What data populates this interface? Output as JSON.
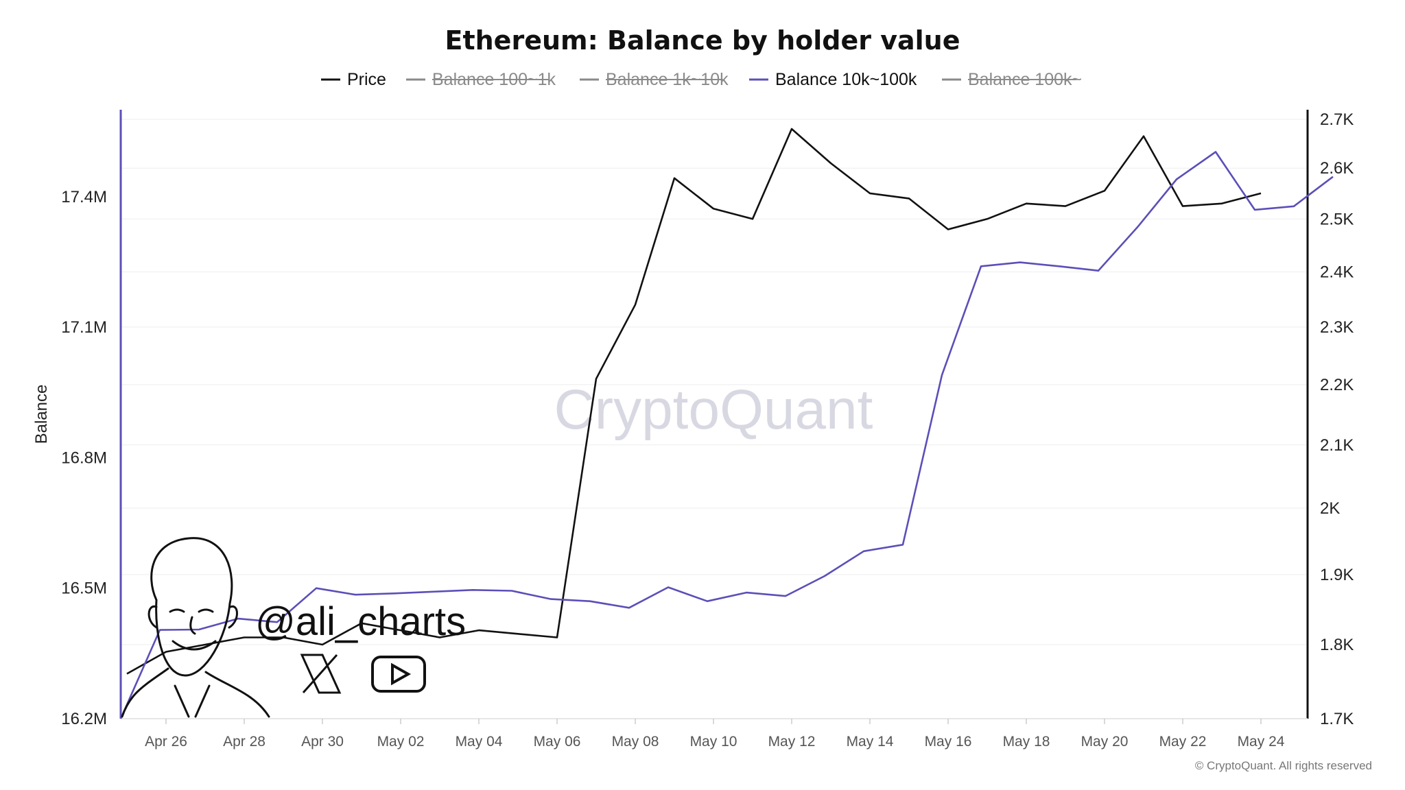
{
  "chart_data": {
    "type": "line",
    "title": "Ethereum: Balance by holder value",
    "y_left_label": "Balance",
    "y_left_ticks": [
      "16.2M",
      "16.5M",
      "16.8M",
      "17.1M",
      "17.4M"
    ],
    "y_left_tick_values": [
      16.2,
      16.5,
      16.8,
      17.1,
      17.4
    ],
    "y_left_range": [
      16.2,
      17.6
    ],
    "y_right_ticks": [
      "1.7K",
      "1.8K",
      "1.9K",
      "2K",
      "2.1K",
      "2.2K",
      "2.3K",
      "2.4K",
      "2.5K",
      "2.6K",
      "2.7K"
    ],
    "y_right_tick_values": [
      1.7,
      1.8,
      1.9,
      2.0,
      2.1,
      2.2,
      2.3,
      2.4,
      2.5,
      2.6,
      2.7
    ],
    "y_right_scale": "log",
    "y_right_range": [
      1.7,
      2.72
    ],
    "x_range": [
      0,
      30
    ],
    "x_ticks": [
      {
        "label": "Apr 26",
        "i": 1
      },
      {
        "label": "Apr 28",
        "i": 3
      },
      {
        "label": "Apr 30",
        "i": 5
      },
      {
        "label": "May 02",
        "i": 7
      },
      {
        "label": "May 04",
        "i": 9
      },
      {
        "label": "May 06",
        "i": 11
      },
      {
        "label": "May 08",
        "i": 13
      },
      {
        "label": "May 10",
        "i": 15
      },
      {
        "label": "May 12",
        "i": 17
      },
      {
        "label": "May 14",
        "i": 19
      },
      {
        "label": "May 16",
        "i": 21
      },
      {
        "label": "May 18",
        "i": 23
      },
      {
        "label": "May 20",
        "i": 25
      },
      {
        "label": "May 22",
        "i": 27
      },
      {
        "label": "May 24",
        "i": 29
      }
    ],
    "legend": [
      {
        "name": "Price",
        "color": "#111111",
        "active": true
      },
      {
        "name": "Balance 100~1k",
        "color": "#8a8a8a",
        "active": false
      },
      {
        "name": "Balance 1k~10k",
        "color": "#8a8a8a",
        "active": false
      },
      {
        "name": "Balance 10k~100k",
        "color": "#5b4fb8",
        "active": true
      },
      {
        "name": "Balance 100k~",
        "color": "#8a8a8a",
        "active": false
      }
    ],
    "series": [
      {
        "name": "Price",
        "axis": "right",
        "color": "#111111",
        "values": [
          1.76,
          1.79,
          1.8,
          1.81,
          1.81,
          1.8,
          1.83,
          1.82,
          1.81,
          1.82,
          1.815,
          1.81,
          2.21,
          2.34,
          2.58,
          2.52,
          2.5,
          2.68,
          2.61,
          2.55,
          2.54,
          2.48,
          2.5,
          2.53,
          2.525,
          2.555,
          2.665,
          2.525,
          2.53,
          2.55
        ]
      },
      {
        "name": "Balance 10k~100k",
        "axis": "left",
        "color": "#5b4fb8",
        "values": [
          16.2,
          16.404,
          16.405,
          16.43,
          16.422,
          16.5,
          16.485,
          16.488,
          16.492,
          16.496,
          16.494,
          16.475,
          16.47,
          16.455,
          16.502,
          16.47,
          16.49,
          16.482,
          16.528,
          16.585,
          16.6,
          16.99,
          17.24,
          17.249,
          17.24,
          17.23,
          17.33,
          17.44,
          17.503,
          17.37,
          17.378,
          17.446
        ]
      }
    ],
    "x_index_of_first_balance_point": -1,
    "watermark": "CryptoQuant",
    "copyright": "© CryptoQuant. All rights reserved",
    "social_handle": "@ali_charts",
    "social_icons": [
      "x-logo-icon",
      "youtube-play-icon"
    ],
    "colors": {
      "price": "#111111",
      "balance": "#5b4fb8",
      "grid": "#eeeeee",
      "left_axis": "#5b4fb8",
      "right_axis": "#111111"
    },
    "grid": true,
    "legend_position": "top-center"
  }
}
